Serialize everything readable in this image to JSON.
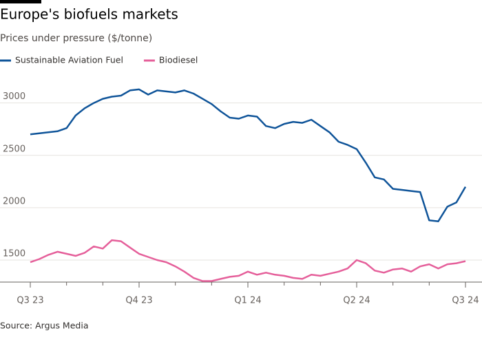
{
  "chart_data": {
    "type": "line",
    "title": "Europe's biofuels markets",
    "subtitle": "Prices under pressure ($/tonne)",
    "source": "Source: Argus Media",
    "x": [
      0,
      0.25,
      0.5,
      0.75,
      1,
      1.25,
      1.5,
      1.75,
      2,
      2.25,
      2.5,
      2.75,
      3,
      3.25,
      3.5,
      3.75,
      4,
      4.25,
      4.5,
      4.75,
      5,
      5.25,
      5.5,
      5.75,
      6,
      6.25,
      6.5,
      6.75,
      7,
      7.25,
      7.5,
      7.75,
      8,
      8.25,
      8.5,
      8.75,
      9,
      9.25,
      9.5,
      9.75,
      10,
      10.25,
      10.5,
      10.75,
      11,
      11.25,
      11.5,
      11.75,
      12
    ],
    "series": [
      {
        "name": "Sustainable Aviation Fuel",
        "color": "#0f5499",
        "values": [
          2700,
          2710,
          2720,
          2730,
          2760,
          2880,
          2950,
          3000,
          3040,
          3060,
          3070,
          3120,
          3130,
          3080,
          3120,
          3110,
          3100,
          3120,
          3090,
          3040,
          2990,
          2920,
          2860,
          2850,
          2880,
          2870,
          2780,
          2760,
          2800,
          2820,
          2810,
          2840,
          2780,
          2720,
          2630,
          2600,
          2560,
          2430,
          2290,
          2270,
          2180,
          2170,
          2160,
          2150,
          1880,
          1870,
          2010,
          2050,
          2200
        ]
      },
      {
        "name": "Biodiesel",
        "color": "#e55f9a",
        "values": [
          1480,
          1510,
          1550,
          1580,
          1560,
          1540,
          1570,
          1630,
          1610,
          1690,
          1680,
          1620,
          1560,
          1530,
          1500,
          1480,
          1440,
          1390,
          1330,
          1300,
          1300,
          1320,
          1340,
          1350,
          1390,
          1360,
          1380,
          1360,
          1350,
          1330,
          1320,
          1360,
          1350,
          1370,
          1390,
          1420,
          1500,
          1470,
          1400,
          1380,
          1410,
          1420,
          1390,
          1440,
          1460,
          1420,
          1460,
          1470,
          1490
        ]
      }
    ],
    "xlim": [
      0,
      12
    ],
    "xticks": [
      {
        "value": 0,
        "label": "Q3 23"
      },
      {
        "value": 3,
        "label": "Q4 23"
      },
      {
        "value": 6,
        "label": "Q1 24"
      },
      {
        "value": 9,
        "label": "Q2 24"
      },
      {
        "value": 12,
        "label": "Q3 24"
      }
    ],
    "xminorticks": [
      1,
      2,
      4,
      5,
      7,
      8,
      10,
      11
    ],
    "ylim": [
      1290,
      3300
    ],
    "yticks": [
      1500,
      2000,
      2500,
      3000
    ],
    "grid": true
  }
}
